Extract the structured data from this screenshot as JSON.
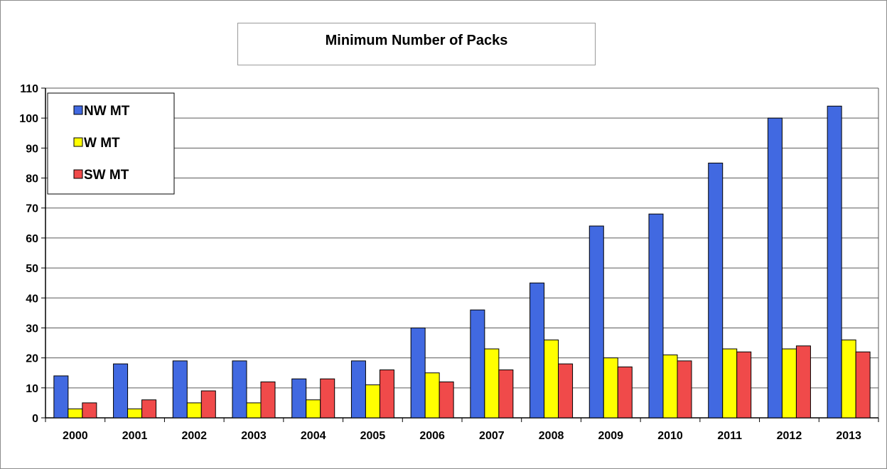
{
  "chart_data": {
    "type": "bar",
    "title": "Minimum Number of Packs",
    "categories": [
      "2000",
      "2001",
      "2002",
      "2003",
      "2004",
      "2005",
      "2006",
      "2007",
      "2008",
      "2009",
      "2010",
      "2011",
      "2012",
      "2013"
    ],
    "series": [
      {
        "name": "NW MT",
        "color": "#4169e1",
        "values": [
          14,
          18,
          19,
          19,
          13,
          19,
          30,
          36,
          45,
          64,
          68,
          85,
          100,
          104
        ]
      },
      {
        "name": "W MT",
        "color": "#ffff00",
        "values": [
          3,
          3,
          5,
          5,
          6,
          11,
          15,
          23,
          26,
          20,
          21,
          23,
          23,
          26
        ]
      },
      {
        "name": "SW MT",
        "color": "#f04a4a",
        "values": [
          5,
          6,
          9,
          12,
          13,
          16,
          12,
          16,
          18,
          17,
          19,
          22,
          24,
          22
        ]
      }
    ],
    "ylim": [
      0,
      110
    ],
    "yticks": [
      0,
      10,
      20,
      30,
      40,
      50,
      60,
      70,
      80,
      90,
      100,
      110
    ],
    "grid": true,
    "legend_position": "top-left"
  }
}
